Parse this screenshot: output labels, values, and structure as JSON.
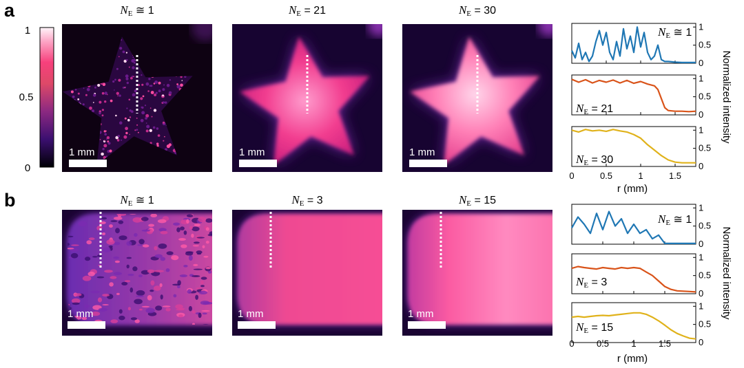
{
  "figure": {
    "row_a": {
      "letter": "a",
      "colorbar": {
        "ticks": [
          "1",
          "0.5",
          "0"
        ]
      },
      "images": [
        {
          "title_prefix": "N",
          "title_sub": "E",
          "title_rel": "≅",
          "title_val": "1",
          "scale_label": "1 mm",
          "shape": "star",
          "mode": "speckle"
        },
        {
          "title_prefix": "N",
          "title_sub": "E",
          "title_rel": "=",
          "title_val": "21",
          "scale_label": "1 mm",
          "shape": "star",
          "mode": "medium"
        },
        {
          "title_prefix": "N",
          "title_sub": "E",
          "title_rel": "=",
          "title_val": "30",
          "scale_label": "1 mm",
          "shape": "star",
          "mode": "smooth"
        }
      ],
      "profiles": {
        "xlabel": "r (mm)",
        "ylabel": "Normalized intensity",
        "xticks": [
          "0",
          "0.5",
          "1",
          "1.5"
        ],
        "yticks": [
          "0",
          "0.5",
          "1"
        ]
      }
    },
    "row_b": {
      "letter": "b",
      "images": [
        {
          "title_prefix": "N",
          "title_sub": "E",
          "title_rel": "≅",
          "title_val": "1",
          "scale_label": "1 mm",
          "shape": "capsule",
          "mode": "speckle"
        },
        {
          "title_prefix": "N",
          "title_sub": "E",
          "title_rel": "=",
          "title_val": "3",
          "scale_label": "1 mm",
          "shape": "capsule",
          "mode": "medium"
        },
        {
          "title_prefix": "N",
          "title_sub": "E",
          "title_rel": "=",
          "title_val": "15",
          "scale_label": "1 mm",
          "shape": "capsule",
          "mode": "smooth"
        }
      ],
      "profiles": {
        "xlabel": "r (mm)",
        "ylabel": "Normalized intensity",
        "xticks": [
          "0",
          "0.5",
          "1",
          "1.5"
        ],
        "yticks": [
          "0",
          "0.5",
          "1"
        ]
      }
    }
  },
  "chart_data": [
    {
      "type": "line",
      "panel": "a",
      "xlabel": "r (mm)",
      "ylabel": "Normalized intensity",
      "xlim": [
        0,
        1.8
      ],
      "ylim": [
        0,
        1.1
      ],
      "series": [
        {
          "name": "NE ≅ 1",
          "color": "#1f77b4",
          "x": [
            0,
            0.05,
            0.1,
            0.15,
            0.2,
            0.25,
            0.3,
            0.35,
            0.4,
            0.45,
            0.5,
            0.55,
            0.6,
            0.65,
            0.7,
            0.75,
            0.8,
            0.85,
            0.9,
            0.95,
            1.0,
            1.05,
            1.1,
            1.15,
            1.2,
            1.25,
            1.3,
            1.35,
            1.4,
            1.5,
            1.6,
            1.7,
            1.8
          ],
          "y": [
            0.35,
            0.15,
            0.55,
            0.1,
            0.3,
            0.05,
            0.2,
            0.6,
            0.9,
            0.5,
            0.85,
            0.3,
            0.1,
            0.6,
            0.2,
            0.95,
            0.4,
            0.75,
            0.3,
            1.0,
            0.45,
            0.85,
            0.3,
            0.1,
            0.2,
            0.5,
            0.1,
            0.05,
            0.05,
            0.03,
            0.02,
            0.02,
            0.02
          ]
        },
        {
          "name": "NE = 21",
          "color": "#d95319",
          "x": [
            0,
            0.1,
            0.2,
            0.3,
            0.4,
            0.5,
            0.6,
            0.7,
            0.8,
            0.9,
            1.0,
            1.1,
            1.2,
            1.25,
            1.3,
            1.35,
            1.4,
            1.5,
            1.6,
            1.7,
            1.8
          ],
          "y": [
            0.98,
            0.9,
            0.97,
            0.88,
            0.95,
            0.9,
            0.96,
            0.88,
            0.95,
            0.87,
            0.92,
            0.85,
            0.8,
            0.7,
            0.45,
            0.2,
            0.12,
            0.1,
            0.1,
            0.09,
            0.1
          ]
        },
        {
          "name": "NE = 30",
          "color": "#e0b21a",
          "x": [
            0,
            0.1,
            0.2,
            0.3,
            0.4,
            0.5,
            0.6,
            0.7,
            0.8,
            0.9,
            1.0,
            1.1,
            1.2,
            1.3,
            1.4,
            1.5,
            1.6,
            1.7,
            1.8
          ],
          "y": [
            1.0,
            0.95,
            1.02,
            0.98,
            1.0,
            0.97,
            1.02,
            0.98,
            0.95,
            0.88,
            0.78,
            0.6,
            0.45,
            0.3,
            0.18,
            0.12,
            0.1,
            0.1,
            0.1
          ]
        }
      ]
    },
    {
      "type": "line",
      "panel": "b",
      "xlabel": "r (mm)",
      "ylabel": "Normalized intensity",
      "xlim": [
        0,
        2.0
      ],
      "ylim": [
        0,
        1.1
      ],
      "series": [
        {
          "name": "NE ≅ 1",
          "color": "#1f77b4",
          "x": [
            0,
            0.1,
            0.2,
            0.3,
            0.4,
            0.5,
            0.6,
            0.7,
            0.8,
            0.9,
            1.0,
            1.1,
            1.2,
            1.3,
            1.4,
            1.5,
            1.6,
            1.7,
            1.8,
            1.9,
            2.0
          ],
          "y": [
            0.45,
            0.75,
            0.55,
            0.3,
            0.85,
            0.4,
            0.9,
            0.5,
            0.7,
            0.3,
            0.55,
            0.3,
            0.4,
            0.15,
            0.25,
            0.02,
            0.02,
            0.02,
            0.02,
            0.02,
            0.02
          ]
        },
        {
          "name": "NE = 3",
          "color": "#d95319",
          "x": [
            0,
            0.1,
            0.2,
            0.3,
            0.4,
            0.5,
            0.6,
            0.7,
            0.8,
            0.9,
            1.0,
            1.1,
            1.2,
            1.3,
            1.4,
            1.5,
            1.6,
            1.7,
            1.8,
            1.9,
            2.0
          ],
          "y": [
            0.7,
            0.75,
            0.72,
            0.7,
            0.68,
            0.72,
            0.7,
            0.68,
            0.72,
            0.7,
            0.72,
            0.7,
            0.6,
            0.5,
            0.35,
            0.2,
            0.12,
            0.08,
            0.07,
            0.06,
            0.05
          ]
        },
        {
          "name": "NE = 15",
          "color": "#e0b21a",
          "x": [
            0,
            0.1,
            0.2,
            0.3,
            0.4,
            0.5,
            0.6,
            0.7,
            0.8,
            0.9,
            1.0,
            1.1,
            1.2,
            1.3,
            1.4,
            1.5,
            1.6,
            1.7,
            1.8,
            1.9,
            2.0
          ],
          "y": [
            0.7,
            0.72,
            0.7,
            0.72,
            0.74,
            0.75,
            0.74,
            0.76,
            0.78,
            0.8,
            0.82,
            0.82,
            0.78,
            0.7,
            0.6,
            0.48,
            0.35,
            0.25,
            0.18,
            0.12,
            0.1
          ]
        }
      ]
    }
  ]
}
